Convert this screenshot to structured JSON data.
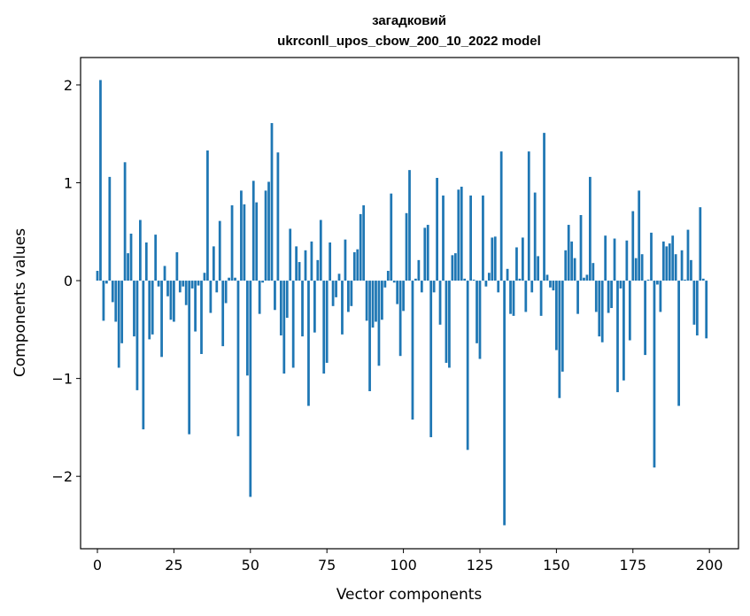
{
  "chart_data": {
    "type": "bar",
    "title_line1": "загадковий",
    "title_line2": "ukrconll_upos_cbow_200_10_2022 model",
    "xlabel": "Vector components",
    "ylabel": "Components values",
    "xlim": [
      -5.5,
      209.5
    ],
    "ylim": [
      -2.74,
      2.28
    ],
    "xticks": [
      0,
      25,
      50,
      75,
      100,
      125,
      150,
      175,
      200
    ],
    "yticks": [
      -2,
      -1,
      0,
      1,
      2
    ],
    "ytick_labels": [
      "−2",
      "−1",
      "0",
      "1",
      "2"
    ],
    "bar_color": "#1f77b4",
    "values": [
      0.1,
      2.05,
      -0.41,
      -0.03,
      1.06,
      -0.22,
      -0.42,
      -0.89,
      -0.64,
      1.21,
      0.28,
      0.48,
      -0.57,
      -1.12,
      0.62,
      -1.52,
      0.39,
      -0.6,
      -0.55,
      0.47,
      -0.06,
      -0.78,
      0.15,
      -0.16,
      -0.4,
      -0.42,
      0.29,
      -0.12,
      -0.06,
      -0.25,
      -1.57,
      -0.08,
      -0.52,
      -0.05,
      -0.75,
      0.08,
      1.33,
      -0.33,
      0.35,
      -0.12,
      0.61,
      -0.67,
      -0.23,
      0.03,
      0.77,
      0.03,
      -1.59,
      0.92,
      0.78,
      -0.97,
      -2.21,
      1.02,
      0.8,
      -0.34,
      -0.02,
      0.92,
      1.01,
      1.61,
      -0.3,
      1.31,
      -0.56,
      -0.95,
      -0.38,
      0.53,
      -0.89,
      0.35,
      0.19,
      -0.57,
      0.31,
      -1.28,
      0.4,
      -0.53,
      0.21,
      0.62,
      -0.95,
      -0.84,
      0.39,
      -0.26,
      -0.17,
      0.07,
      -0.55,
      0.42,
      -0.32,
      -0.26,
      0.29,
      0.32,
      0.68,
      0.77,
      -0.41,
      -1.13,
      -0.48,
      -0.42,
      -0.87,
      -0.4,
      -0.07,
      0.1,
      0.89,
      -0.02,
      -0.24,
      -0.77,
      -0.31,
      0.69,
      1.13,
      -1.42,
      0.02,
      0.21,
      -0.12,
      0.54,
      0.57,
      -1.6,
      -0.12,
      1.05,
      -0.45,
      0.87,
      -0.84,
      -0.89,
      0.26,
      0.28,
      0.93,
      0.96,
      0.02,
      -1.73,
      0.87,
      0.01,
      -0.64,
      -0.8,
      0.87,
      -0.06,
      0.08,
      0.44,
      0.45,
      -0.12,
      1.32,
      -2.5,
      0.12,
      -0.34,
      -0.36,
      0.34,
      0.02,
      0.44,
      -0.32,
      1.32,
      -0.12,
      0.9,
      0.25,
      -0.36,
      1.51,
      0.06,
      -0.07,
      -0.1,
      -0.71,
      -1.2,
      -0.93,
      0.31,
      0.57,
      0.4,
      0.23,
      -0.34,
      0.67,
      0.03,
      0.06,
      1.06,
      0.18,
      -0.32,
      -0.57,
      -0.63,
      0.46,
      -0.33,
      -0.28,
      0.43,
      -1.14,
      -0.08,
      -1.02,
      0.41,
      -0.61,
      0.71,
      0.23,
      0.92,
      0.27,
      -0.76,
      0.01,
      0.49,
      -1.91,
      -0.04,
      -0.32,
      0.4,
      0.35,
      0.38,
      0.46,
      0.27,
      -1.28,
      0.31,
      0.01,
      0.52,
      0.21,
      -0.45,
      -0.56,
      0.75,
      0.02,
      -0.59
    ]
  }
}
